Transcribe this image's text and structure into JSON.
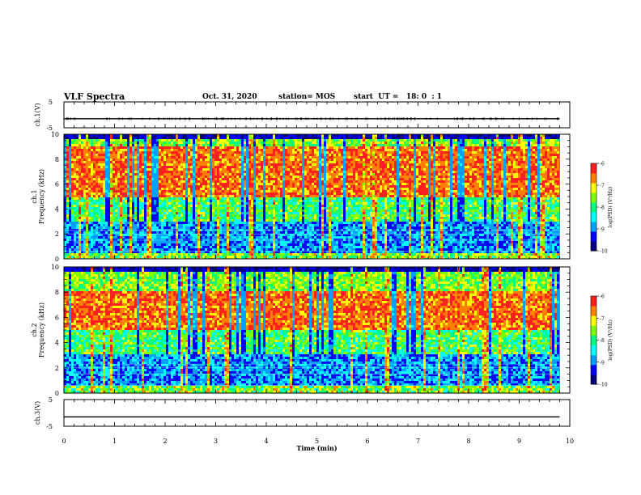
{
  "header": {
    "title": "VLF Spectra",
    "date": "Oct. 31, 2020",
    "station": "station= MOS",
    "start": "start  UT =   18: 0  : 1"
  },
  "chart_data": [
    {
      "type": "line",
      "name": "ch1-waveform",
      "ylabel": "ch.1(V)",
      "yticks": [
        "5",
        "-5"
      ],
      "ylim": [
        -5,
        5
      ],
      "xlim": [
        0,
        10
      ],
      "trace_level": -1.5,
      "trace_end_min": 9.8
    },
    {
      "type": "heatmap",
      "name": "ch1-spectrogram",
      "ylabel": [
        "ch.1",
        "Frequency (kHz)"
      ],
      "ylim": [
        0,
        10
      ],
      "yticks": [
        "0",
        "2",
        "4",
        "6",
        "8",
        "10"
      ],
      "xlim": [
        0,
        10
      ],
      "data_end_min": 9.8,
      "intense_band_khz": [
        5,
        9
      ],
      "colorbar": {
        "label": "log(PSD) (V²/Hz)",
        "ticks": [
          "-6",
          "-7",
          "-8",
          "-9",
          "-10"
        ],
        "range": [
          -10,
          -6
        ]
      }
    },
    {
      "type": "heatmap",
      "name": "ch2-spectrogram",
      "ylabel": [
        "ch.2",
        "Frequency (kHz)"
      ],
      "ylim": [
        0,
        10
      ],
      "yticks": [
        "0",
        "2",
        "4",
        "6",
        "8",
        "10"
      ],
      "xlim": [
        0,
        10
      ],
      "data_end_min": 9.8,
      "intense_band_khz": [
        5,
        8
      ],
      "colorbar": {
        "label": "log(PSD) (V²/Hz)",
        "ticks": [
          "-6",
          "-7",
          "-8",
          "-9",
          "-10"
        ],
        "range": [
          -10,
          -6
        ]
      }
    },
    {
      "type": "line",
      "name": "ch3-waveform",
      "ylabel": "ch.3(V)",
      "yticks": [
        "5",
        "-5"
      ],
      "ylim": [
        -5,
        5
      ],
      "xlim": [
        0,
        10
      ],
      "trace_level": -1.5,
      "trace_end_min": 9.8
    }
  ],
  "x_axis": {
    "label": "Time (min)",
    "ticks": [
      "0",
      "1",
      "2",
      "3",
      "4",
      "5",
      "6",
      "7",
      "8",
      "9",
      "10"
    ]
  },
  "colors": {
    "colormap": [
      "#000080",
      "#0000ff",
      "#00a0ff",
      "#00ffff",
      "#00ff80",
      "#80ff00",
      "#ffff00",
      "#ff8000",
      "#ff2020"
    ],
    "axis": "#000000"
  }
}
